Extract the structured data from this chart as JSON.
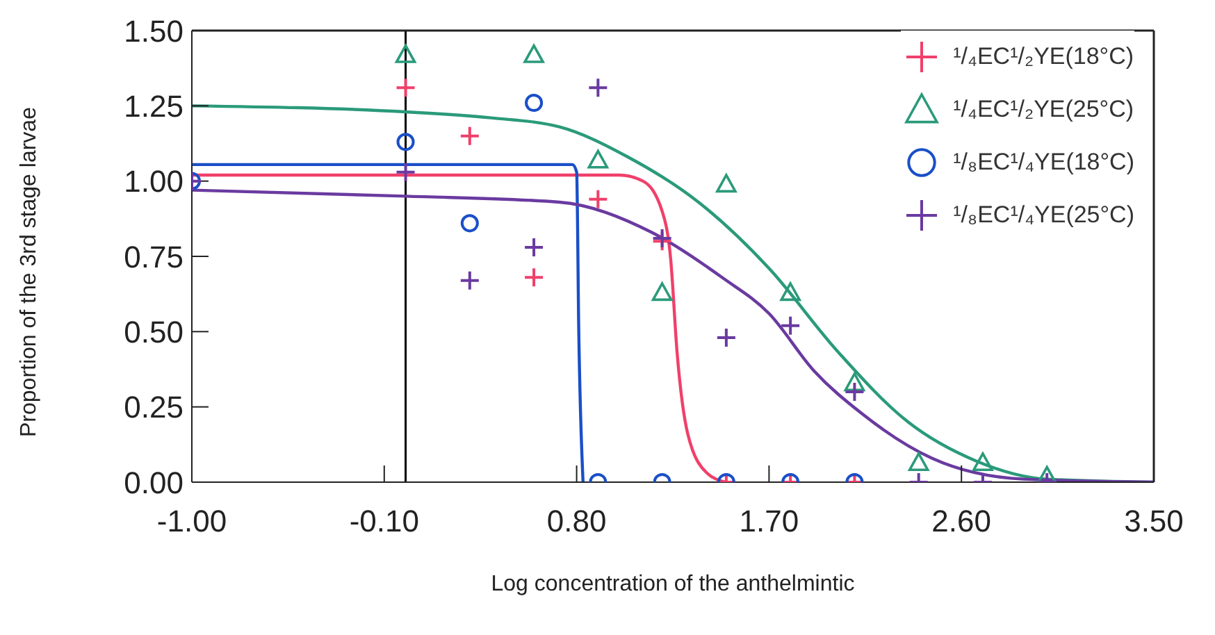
{
  "chart_data": {
    "type": "scatter",
    "xlabel": "Log concentration of the anthelmintic",
    "ylabel": "Proportion of the 3rd stage larvae",
    "xlim": [
      -1.0,
      3.5
    ],
    "xticks": [
      {
        "value": -1.0,
        "label": "-1.00"
      },
      {
        "value": -0.1,
        "label": "-0.10"
      },
      {
        "value": 0.8,
        "label": "0.80"
      },
      {
        "value": 1.7,
        "label": "1.70"
      },
      {
        "value": 2.6,
        "label": "2.60"
      },
      {
        "value": 3.5,
        "label": "3.50"
      }
    ],
    "ylim": [
      0,
      1.5
    ],
    "yticks": [
      {
        "value": 0,
        "label": "0.00"
      },
      {
        "value": 0.25,
        "label": "0.25"
      },
      {
        "value": 0.5,
        "label": "0.50"
      },
      {
        "value": 0.75,
        "label": "0.75"
      },
      {
        "value": 1.0,
        "label": "1.00"
      },
      {
        "value": 1.25,
        "label": "1.25"
      },
      {
        "value": 1.5,
        "label": "1.50"
      }
    ],
    "grid": false,
    "legend": "top right",
    "ref_lines": [
      {
        "axis": "x",
        "value": 0,
        "color": "#000000"
      }
    ],
    "series": [
      {
        "name": "¹/₄EC¹/₂YE(18°C)",
        "color": "#f0406a",
        "marker": "cross",
        "x": [
          0,
          0.3,
          0.6,
          0.9,
          1.2,
          1.5,
          1.8,
          2.1
        ],
        "values": [
          1.31,
          1.15,
          0.68,
          0.94,
          0.8,
          0,
          0,
          0
        ]
      },
      {
        "name": "¹/₄EC¹/₂YE(25°C)",
        "color": "#2a9a7a",
        "marker": "triangle",
        "x": [
          0,
          0.6,
          0.9,
          1.2,
          1.5,
          1.8,
          2.1,
          2.4,
          2.7,
          3.0
        ],
        "values": [
          1.42,
          1.42,
          1.07,
          0.63,
          0.99,
          0.63,
          0.33,
          0.065,
          0.065,
          0.02
        ]
      },
      {
        "name": "¹/₈EC¹/₄YE(18°C)",
        "color": "#1a4fc8",
        "marker": "circle",
        "x": [
          -1,
          0,
          0.3,
          0.6,
          0.9,
          1.2,
          1.5,
          1.8,
          2.1
        ],
        "values": [
          1.0,
          1.13,
          0.86,
          1.26,
          0,
          0,
          0,
          0,
          0
        ]
      },
      {
        "name": "¹/₈EC¹/₄YE(25°C)",
        "color": "#6a3aa0",
        "marker": "cross",
        "x": [
          -1,
          0,
          0.3,
          0.6,
          0.9,
          1.2,
          1.5,
          1.8,
          2.1,
          2.4,
          2.7,
          3.0
        ],
        "values": [
          1.0,
          1.03,
          0.67,
          0.78,
          1.31,
          0.81,
          0.48,
          0.52,
          0.3,
          0,
          0,
          0
        ]
      },
      {
        "type": "line",
        "color": "#f0406a",
        "marker": "none",
        "x": [
          -1,
          0,
          0.5,
          1.0,
          1.11,
          1.2,
          1.24,
          1.27,
          1.32,
          1.41,
          1.5
        ],
        "values": [
          1.02,
          1.02,
          1.02,
          1.02,
          1.0,
          0.9,
          0.74,
          0.43,
          0.16,
          0.03,
          0
        ]
      },
      {
        "type": "line",
        "color": "#2a9a7a",
        "marker": "none",
        "x": [
          -1,
          0,
          0.4,
          0.72,
          1.04,
          1.37,
          1.7,
          2.02,
          2.35,
          2.67,
          3.0,
          3.5
        ],
        "values": [
          1.25,
          1.23,
          1.21,
          1.18,
          1.08,
          0.93,
          0.71,
          0.435,
          0.2,
          0.07,
          0.01,
          0
        ]
      },
      {
        "type": "line",
        "color": "#1a4fc8",
        "marker": "none",
        "x": [
          -1,
          0,
          0.78,
          0.8,
          0.81,
          0.83
        ],
        "values": [
          1.055,
          1.055,
          1.055,
          1.03,
          0.5,
          0
        ]
      },
      {
        "type": "line",
        "color": "#6a3aa0",
        "marker": "none",
        "x": [
          -1,
          0,
          0.72,
          1.15,
          1.48,
          1.7,
          1.91,
          2.13,
          2.46,
          2.89,
          3.5
        ],
        "values": [
          0.97,
          0.95,
          0.93,
          0.83,
          0.68,
          0.56,
          0.37,
          0.23,
          0.08,
          0.01,
          0
        ]
      }
    ]
  }
}
